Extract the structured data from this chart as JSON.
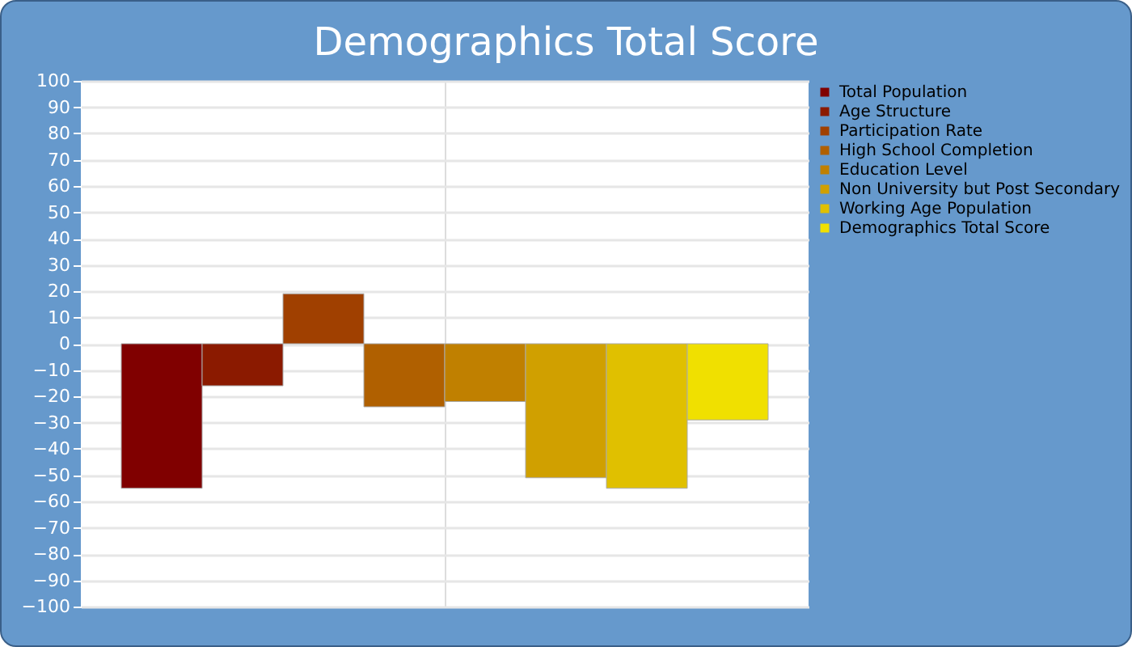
{
  "chart_data": {
    "type": "bar",
    "title": "Demographics Total Score",
    "categories": [
      null
    ],
    "series": [
      {
        "name": "Total Population",
        "color": "#800000",
        "values": [
          -55
        ]
      },
      {
        "name": "Age Structure",
        "color": "#8b1a00",
        "values": [
          -16
        ]
      },
      {
        "name": "Participation Rate",
        "color": "#a04000",
        "values": [
          19
        ]
      },
      {
        "name": "High School Completion",
        "color": "#b06000",
        "values": [
          -24
        ]
      },
      {
        "name": "Education Level",
        "color": "#c08000",
        "values": [
          -22
        ]
      },
      {
        "name": "Non University but Post Secondary",
        "color": "#d0a000",
        "values": [
          -51
        ]
      },
      {
        "name": "Working Age Population",
        "color": "#e0c000",
        "values": [
          -55
        ]
      },
      {
        "name": "Demographics Total Score",
        "color": "#f0e000",
        "values": [
          -29
        ]
      }
    ],
    "ylim": [
      -100,
      100
    ],
    "yticks": [
      -100,
      -90,
      -80,
      -70,
      -60,
      -50,
      -40,
      -30,
      -20,
      -10,
      0,
      10,
      20,
      30,
      40,
      50,
      60,
      70,
      80,
      90,
      100
    ],
    "grid": true,
    "legend": "right",
    "tick_labels": "y"
  }
}
